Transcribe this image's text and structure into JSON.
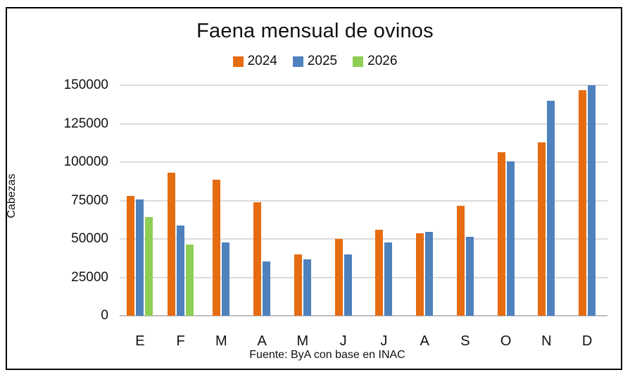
{
  "chart_data": {
    "type": "bar",
    "title": "Faena mensual de ovinos",
    "ylabel": "Cabezas",
    "xlabel": "",
    "source": "Fuente: ByA con base en INAC",
    "categories": [
      "E",
      "F",
      "M",
      "A",
      "M",
      "J",
      "J",
      "A",
      "S",
      "O",
      "N",
      "D"
    ],
    "series": [
      {
        "name": "2024",
        "color": "#E66C11",
        "values": [
          78000,
          93000,
          88500,
          74000,
          40000,
          50000,
          56000,
          53500,
          71500,
          106500,
          113000,
          147000
        ]
      },
      {
        "name": "2025",
        "color": "#4F81BD",
        "values": [
          75500,
          58500,
          47500,
          35500,
          36500,
          40000,
          47500,
          54500,
          51500,
          100500,
          140000,
          150000
        ]
      },
      {
        "name": "2026",
        "color": "#8FCE55",
        "values": [
          64000,
          46500,
          null,
          null,
          null,
          null,
          null,
          null,
          null,
          null,
          null,
          null
        ]
      }
    ],
    "ylim": [
      0,
      150000
    ],
    "ytick_step": 25000,
    "grid": "horizontal",
    "legend_position": "top",
    "colors": {
      "gridline": "#dcdcdc",
      "axis_line": "#c0c0c0",
      "text": "#111111",
      "frame_border": "#000000"
    }
  }
}
